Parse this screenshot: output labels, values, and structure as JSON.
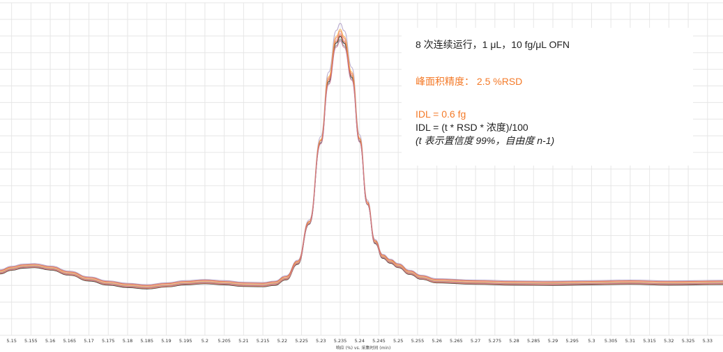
{
  "chart_data": {
    "type": "line",
    "title": "",
    "xlabel": "响应 (%) vs. 采集时间 (min)",
    "ylabel": "",
    "xlim": [
      5.147,
      5.334
    ],
    "ylim": [
      0,
      100
    ],
    "x_ticks": [
      "5.15",
      "5.155",
      "5.16",
      "5.165",
      "5.17",
      "5.175",
      "5.18",
      "5.185",
      "5.19",
      "5.195",
      "5.2",
      "5.205",
      "5.21",
      "5.215",
      "5.22",
      "5.225",
      "5.23",
      "5.235",
      "5.24",
      "5.245",
      "5.25",
      "5.255",
      "5.26",
      "5.265",
      "5.27",
      "5.275",
      "5.28",
      "5.285",
      "5.29",
      "5.295",
      "5.3",
      "5.305",
      "5.31",
      "5.315",
      "5.32",
      "5.325",
      "5.33"
    ],
    "grid": true,
    "legend": "none",
    "base_x": [
      5.147,
      5.15,
      5.153,
      5.156,
      5.16,
      5.165,
      5.17,
      5.175,
      5.18,
      5.185,
      5.19,
      5.195,
      5.2,
      5.205,
      5.21,
      5.215,
      5.218,
      5.221,
      5.224,
      5.227,
      5.23,
      5.232,
      5.234,
      5.235,
      5.236,
      5.238,
      5.24,
      5.242,
      5.244,
      5.246,
      5.248,
      5.25,
      5.253,
      5.256,
      5.26,
      5.27,
      5.28,
      5.29,
      5.3,
      5.31,
      5.32,
      5.334
    ],
    "base_y": [
      6.9,
      8.2,
      9.0,
      9.2,
      8.3,
      6.4,
      4.3,
      2.8,
      1.9,
      1.4,
      2.1,
      2.9,
      3.3,
      2.9,
      2.3,
      2.2,
      2.7,
      4.7,
      10.4,
      25.1,
      54.9,
      77.2,
      91.4,
      93.8,
      91.3,
      78.8,
      55.5,
      32.3,
      18.0,
      12.6,
      10.8,
      9.2,
      6.7,
      4.9,
      3.6,
      3.1,
      2.8,
      2.7,
      2.9,
      3.1,
      2.8,
      3.0
    ],
    "series": [
      {
        "color": "#222222",
        "peak": 93.8,
        "offset": -0.2
      },
      {
        "color": "#8c8c8c",
        "peak": 92.8,
        "offset": 0.4
      },
      {
        "color": "#b0a0c8",
        "peak": 98.6,
        "offset": 1.4
      },
      {
        "color": "#e8a0b4",
        "peak": 95.0,
        "offset": 0.9
      },
      {
        "color": "#f28c5a",
        "peak": 95.8,
        "offset": 0.0
      },
      {
        "color": "#f5b15a",
        "peak": 96.4,
        "offset": 0.6
      },
      {
        "color": "#e06a3a",
        "peak": 94.4,
        "offset": 1.1
      },
      {
        "color": "#c87a9a",
        "peak": 92.2,
        "offset": 0.2
      }
    ]
  },
  "annotation": {
    "line1": "8 次连续运行，1 μL，10 fg/μL OFN",
    "line2": "峰面积精度： 2.5 %RSD",
    "line3": "IDL = 0.6 fg",
    "line4": "IDL = (t * RSD * 浓度)/100",
    "line5": "(t 表示置信度 99%，自由度 n-1)"
  },
  "colors": {
    "accent": "#f47a28",
    "text": "#222222",
    "grid": "#e6e6e6"
  }
}
